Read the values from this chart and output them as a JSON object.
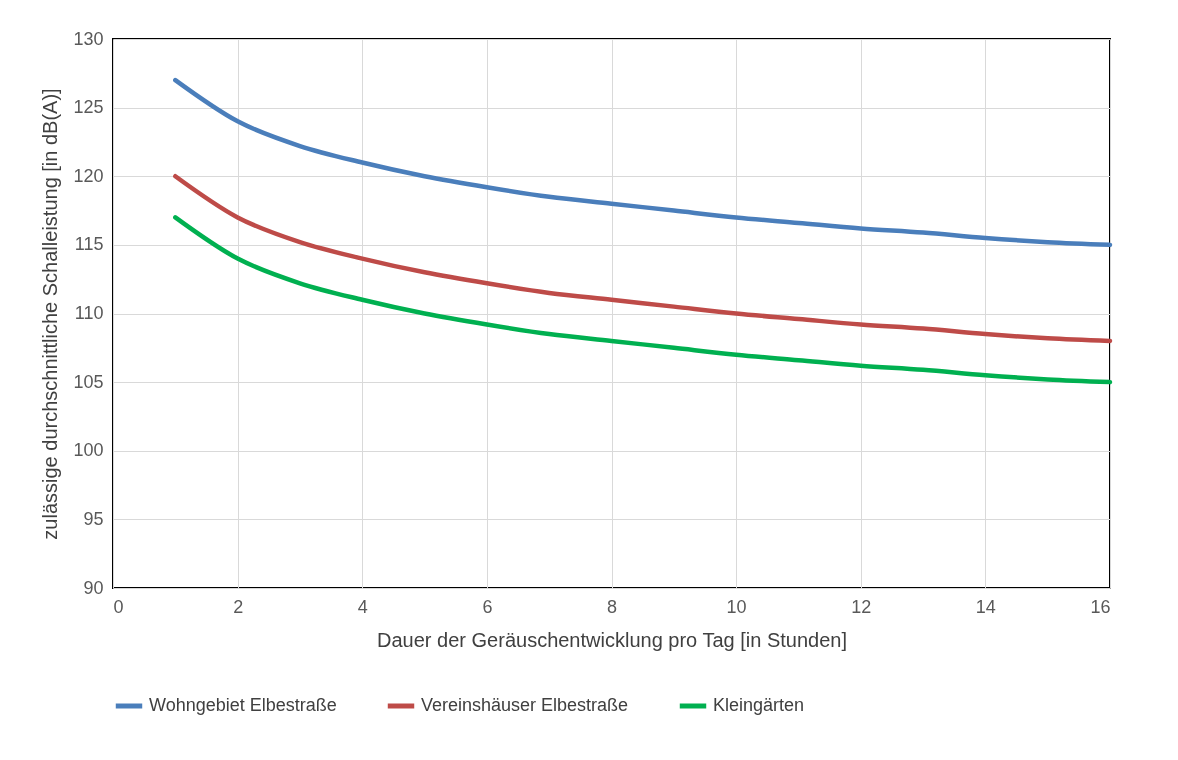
{
  "chart_data": {
    "type": "line",
    "xlabel": "Dauer der Geräuschentwicklung pro Tag [in Stunden]",
    "ylabel": "zulässige durchschnittliche Schalleistung [in dB(A)]",
    "x": [
      1,
      2,
      3,
      4,
      5,
      6,
      7,
      8,
      9,
      10,
      11,
      12,
      13,
      14,
      15,
      16
    ],
    "series": [
      {
        "name": "Wohngebiet Elbestraße",
        "color": "#4a7ebb",
        "values": [
          127,
          124,
          122.2,
          121,
          120,
          119.2,
          118.5,
          118,
          117.5,
          117,
          116.6,
          116.2,
          115.9,
          115.5,
          115.2,
          115
        ]
      },
      {
        "name": "Vereinshäuser Elbestraße",
        "color": "#be4b48",
        "values": [
          120,
          117,
          115.2,
          114,
          113,
          112.2,
          111.5,
          111,
          110.5,
          110,
          109.6,
          109.2,
          108.9,
          108.5,
          108.2,
          108
        ]
      },
      {
        "name": "Kleingärten",
        "color": "#00b050",
        "values": [
          117,
          114,
          112.2,
          111,
          110,
          109.2,
          108.5,
          108,
          107.5,
          107,
          106.6,
          106.2,
          105.9,
          105.5,
          105.2,
          105
        ]
      }
    ],
    "xlim": [
      0,
      16
    ],
    "xticks": [
      0,
      2,
      4,
      6,
      8,
      10,
      12,
      14,
      16
    ],
    "ylim": [
      90,
      130
    ],
    "yticks": [
      90,
      95,
      100,
      105,
      110,
      115,
      120,
      125,
      130
    ],
    "grid": true,
    "legend": "bottom",
    "marker": "none",
    "line_style": "solid"
  }
}
